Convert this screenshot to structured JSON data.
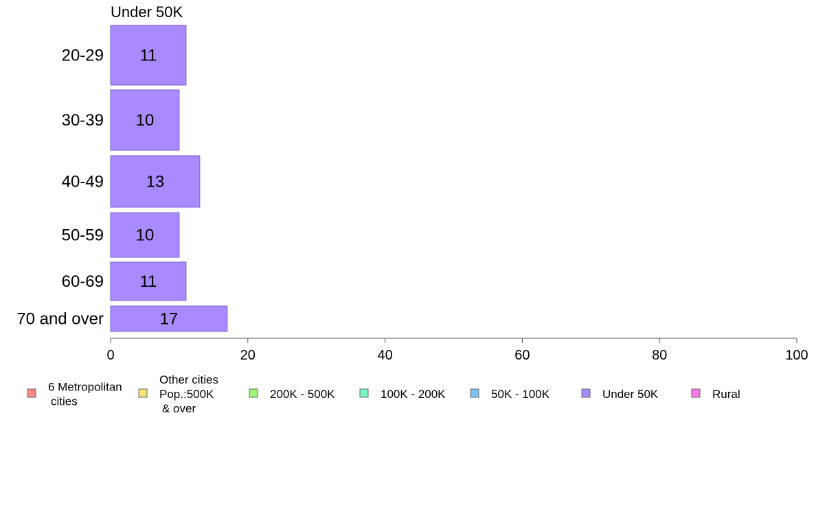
{
  "chart_data": {
    "type": "bar",
    "orientation": "horizontal",
    "title": "Under 50K",
    "categories": [
      "20-29",
      "30-39",
      "40-49",
      "50-59",
      "60-69",
      "70 and over"
    ],
    "series": [
      {
        "name": "Under 50K",
        "values": [
          11,
          10,
          13,
          10,
          11,
          17
        ],
        "color": "#a98bff"
      }
    ],
    "value_labels": [
      "11",
      "10",
      "13",
      "10",
      "11",
      "17"
    ],
    "xlim": [
      0,
      100
    ],
    "xticks": [
      0,
      20,
      40,
      60,
      80,
      100
    ],
    "xtick_labels": [
      "0",
      "20",
      "40",
      "60",
      "80",
      "100"
    ],
    "grid": false,
    "legend_position": "bottom",
    "legend": [
      {
        "label": [
          "6 Metropolitan",
          " cities"
        ],
        "color": "#f88a8a"
      },
      {
        "label": [
          "Other cities",
          "Pop.:500K",
          " & over"
        ],
        "color": "#f8e27a"
      },
      {
        "label": [
          "200K - 500K"
        ],
        "color": "#9df57a"
      },
      {
        "label": [
          "100K - 200K"
        ],
        "color": "#7af5c4"
      },
      {
        "label": [
          "50K - 100K"
        ],
        "color": "#7ac4f8"
      },
      {
        "label": [
          "Under 50K"
        ],
        "color": "#a98bff"
      },
      {
        "label": [
          "Rural"
        ],
        "color": "#f87ae6"
      }
    ]
  }
}
